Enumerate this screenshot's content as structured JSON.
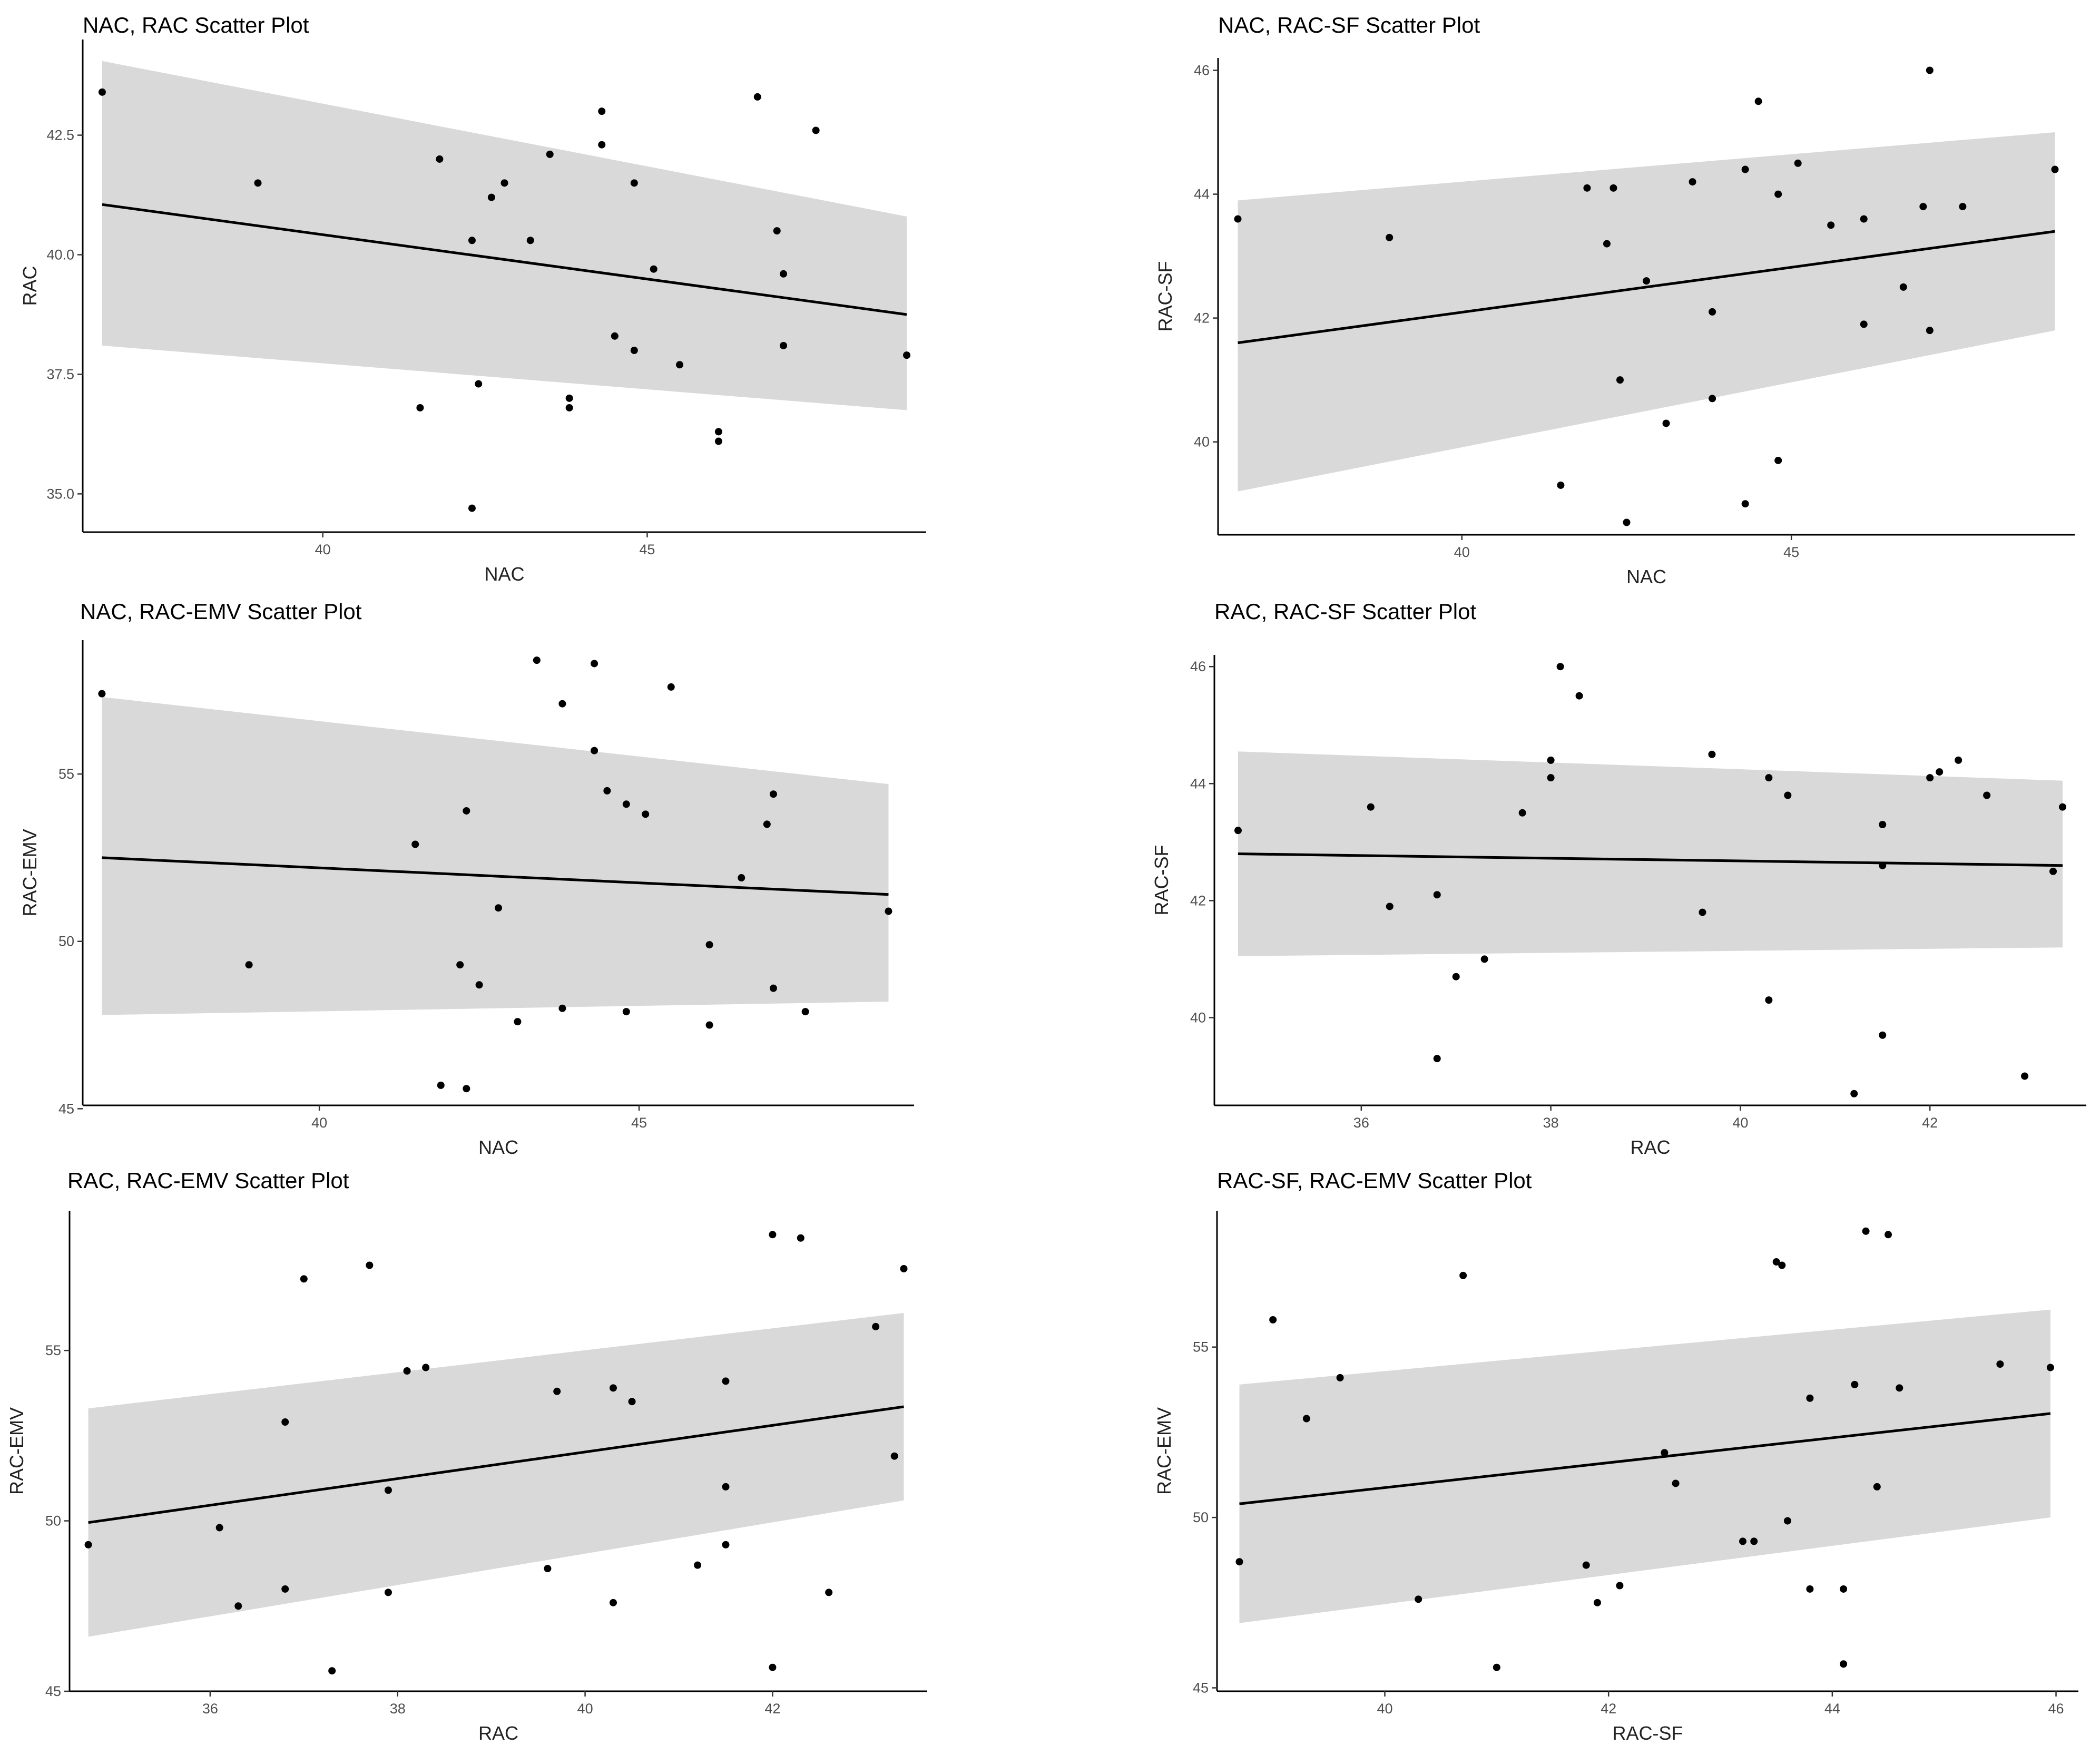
{
  "chart_data": [
    {
      "type": "scatter",
      "title": "NAC, RAC Scatter Plot",
      "xlabel": "NAC",
      "ylabel": "RAC",
      "xlim": [
        36.3,
        49.3
      ],
      "ylim": [
        34.2,
        44.5
      ],
      "xticks": [
        40,
        45
      ],
      "yticks": [
        35.0,
        37.5,
        40.0,
        42.5
      ],
      "ytick_labels": [
        "35.0",
        "37.5",
        "40.0",
        "42.5"
      ],
      "fit": {
        "x": [
          36.6,
          49.0
        ],
        "y": [
          41.05,
          38.75
        ],
        "lower": [
          38.1,
          36.75
        ],
        "upper": [
          44.05,
          40.8
        ]
      },
      "points": [
        {
          "x": 36.6,
          "y": 43.4
        },
        {
          "x": 39.0,
          "y": 41.5
        },
        {
          "x": 41.5,
          "y": 36.8
        },
        {
          "x": 41.8,
          "y": 42.0
        },
        {
          "x": 42.3,
          "y": 34.7
        },
        {
          "x": 42.3,
          "y": 40.3
        },
        {
          "x": 42.4,
          "y": 37.3
        },
        {
          "x": 42.6,
          "y": 41.2
        },
        {
          "x": 42.8,
          "y": 41.5
        },
        {
          "x": 43.2,
          "y": 40.3
        },
        {
          "x": 43.5,
          "y": 42.1
        },
        {
          "x": 43.8,
          "y": 37.0
        },
        {
          "x": 43.8,
          "y": 36.8
        },
        {
          "x": 44.3,
          "y": 42.3
        },
        {
          "x": 44.3,
          "y": 43.0
        },
        {
          "x": 44.5,
          "y": 38.3
        },
        {
          "x": 44.8,
          "y": 41.5
        },
        {
          "x": 44.8,
          "y": 38.0
        },
        {
          "x": 45.1,
          "y": 39.7
        },
        {
          "x": 45.5,
          "y": 37.7
        },
        {
          "x": 46.1,
          "y": 36.3
        },
        {
          "x": 46.1,
          "y": 36.1
        },
        {
          "x": 46.7,
          "y": 43.3
        },
        {
          "x": 47.0,
          "y": 40.5
        },
        {
          "x": 47.1,
          "y": 39.6
        },
        {
          "x": 47.1,
          "y": 38.1
        },
        {
          "x": 47.6,
          "y": 42.6
        },
        {
          "x": 49.0,
          "y": 37.9
        }
      ]
    },
    {
      "type": "scatter",
      "title": "NAC, RAC-SF Scatter Plot",
      "xlabel": "NAC",
      "ylabel": "RAC-SF",
      "xlim": [
        36.3,
        49.3
      ],
      "ylim": [
        38.5,
        46.2
      ],
      "xticks": [
        40,
        45
      ],
      "yticks": [
        40,
        42,
        44,
        46
      ],
      "ytick_labels": [
        "40",
        "42",
        "44",
        "46"
      ],
      "fit": {
        "x": [
          36.6,
          49.0
        ],
        "y": [
          41.6,
          43.4
        ],
        "lower": [
          39.2,
          41.8
        ],
        "upper": [
          43.9,
          45.0
        ]
      },
      "points": [
        {
          "x": 36.6,
          "y": 43.6
        },
        {
          "x": 38.9,
          "y": 43.3
        },
        {
          "x": 41.5,
          "y": 39.3
        },
        {
          "x": 41.9,
          "y": 44.1
        },
        {
          "x": 42.2,
          "y": 43.2
        },
        {
          "x": 42.3,
          "y": 44.1
        },
        {
          "x": 42.4,
          "y": 41.0
        },
        {
          "x": 42.5,
          "y": 38.7
        },
        {
          "x": 42.8,
          "y": 42.6
        },
        {
          "x": 43.1,
          "y": 40.3
        },
        {
          "x": 43.5,
          "y": 44.2
        },
        {
          "x": 43.8,
          "y": 42.1
        },
        {
          "x": 43.8,
          "y": 40.7
        },
        {
          "x": 44.3,
          "y": 44.4
        },
        {
          "x": 44.3,
          "y": 39.0
        },
        {
          "x": 44.5,
          "y": 45.5
        },
        {
          "x": 44.8,
          "y": 44.0
        },
        {
          "x": 44.8,
          "y": 39.7
        },
        {
          "x": 45.1,
          "y": 44.5
        },
        {
          "x": 45.6,
          "y": 43.5
        },
        {
          "x": 46.1,
          "y": 43.6
        },
        {
          "x": 46.1,
          "y": 41.9
        },
        {
          "x": 46.7,
          "y": 42.5
        },
        {
          "x": 47.0,
          "y": 43.8
        },
        {
          "x": 47.1,
          "y": 41.8
        },
        {
          "x": 47.1,
          "y": 46.0
        },
        {
          "x": 47.6,
          "y": 43.8
        },
        {
          "x": 49.0,
          "y": 44.4
        }
      ]
    },
    {
      "type": "scatter",
      "title": "NAC, RAC-EMV Scatter Plot",
      "xlabel": "NAC",
      "ylabel": "RAC-EMV",
      "xlim": [
        36.3,
        49.3
      ],
      "ylim": [
        45.1,
        59.0
      ],
      "xticks": [
        40,
        45
      ],
      "yticks": [
        45,
        50,
        55
      ],
      "ytick_labels": [
        "45",
        "50",
        "55"
      ],
      "fit": {
        "x": [
          36.6,
          48.9
        ],
        "y": [
          52.5,
          51.4
        ],
        "lower": [
          47.8,
          48.2
        ],
        "upper": [
          57.3,
          54.7
        ]
      },
      "points": [
        {
          "x": 36.6,
          "y": 57.4
        },
        {
          "x": 38.9,
          "y": 49.3
        },
        {
          "x": 41.5,
          "y": 52.9
        },
        {
          "x": 41.9,
          "y": 45.7
        },
        {
          "x": 42.2,
          "y": 49.3
        },
        {
          "x": 42.3,
          "y": 53.9
        },
        {
          "x": 42.3,
          "y": 45.6
        },
        {
          "x": 42.5,
          "y": 48.7
        },
        {
          "x": 42.8,
          "y": 51.0
        },
        {
          "x": 43.1,
          "y": 47.6
        },
        {
          "x": 43.4,
          "y": 58.4
        },
        {
          "x": 43.8,
          "y": 57.1
        },
        {
          "x": 43.8,
          "y": 48.0
        },
        {
          "x": 44.3,
          "y": 58.3
        },
        {
          "x": 44.3,
          "y": 55.7
        },
        {
          "x": 44.5,
          "y": 54.5
        },
        {
          "x": 44.8,
          "y": 54.1
        },
        {
          "x": 44.8,
          "y": 47.9
        },
        {
          "x": 45.1,
          "y": 53.8
        },
        {
          "x": 45.5,
          "y": 57.6
        },
        {
          "x": 46.1,
          "y": 49.9
        },
        {
          "x": 46.1,
          "y": 47.5
        },
        {
          "x": 46.6,
          "y": 51.9
        },
        {
          "x": 47.0,
          "y": 53.5
        },
        {
          "x": 47.1,
          "y": 54.4
        },
        {
          "x": 47.1,
          "y": 48.6
        },
        {
          "x": 47.6,
          "y": 47.9
        },
        {
          "x": 48.9,
          "y": 50.9
        }
      ]
    },
    {
      "type": "scatter",
      "title": "RAC, RAC-SF Scatter Plot",
      "xlabel": "RAC",
      "ylabel": "RAC-SF",
      "xlim": [
        34.45,
        43.65
      ],
      "ylim": [
        38.5,
        46.2
      ],
      "xticks": [
        36,
        38,
        40,
        42
      ],
      "yticks": [
        40,
        42,
        44,
        46
      ],
      "ytick_labels": [
        "40",
        "42",
        "44",
        "46"
      ],
      "fit": {
        "x": [
          34.7,
          43.4
        ],
        "y": [
          42.8,
          42.6
        ],
        "lower": [
          41.05,
          41.2
        ],
        "upper": [
          44.55,
          44.05
        ]
      },
      "points": [
        {
          "x": 34.7,
          "y": 43.2
        },
        {
          "x": 36.1,
          "y": 43.6
        },
        {
          "x": 36.3,
          "y": 41.9
        },
        {
          "x": 36.8,
          "y": 42.1
        },
        {
          "x": 36.8,
          "y": 39.3
        },
        {
          "x": 37.0,
          "y": 40.7
        },
        {
          "x": 37.3,
          "y": 41.0
        },
        {
          "x": 37.7,
          "y": 43.5
        },
        {
          "x": 38.0,
          "y": 44.4
        },
        {
          "x": 38.0,
          "y": 44.1
        },
        {
          "x": 38.1,
          "y": 46.0
        },
        {
          "x": 38.3,
          "y": 45.5
        },
        {
          "x": 39.6,
          "y": 41.8
        },
        {
          "x": 39.7,
          "y": 44.5
        },
        {
          "x": 40.3,
          "y": 44.1
        },
        {
          "x": 40.3,
          "y": 40.3
        },
        {
          "x": 40.5,
          "y": 43.8
        },
        {
          "x": 41.2,
          "y": 38.7
        },
        {
          "x": 41.5,
          "y": 43.3
        },
        {
          "x": 41.5,
          "y": 42.6
        },
        {
          "x": 41.5,
          "y": 39.7
        },
        {
          "x": 42.0,
          "y": 44.1
        },
        {
          "x": 42.1,
          "y": 44.2
        },
        {
          "x": 42.3,
          "y": 44.4
        },
        {
          "x": 42.6,
          "y": 43.8
        },
        {
          "x": 43.0,
          "y": 39.0
        },
        {
          "x": 43.3,
          "y": 42.5
        },
        {
          "x": 43.4,
          "y": 43.6
        }
      ]
    },
    {
      "type": "scatter",
      "title": "RAC, RAC-EMV Scatter Plot",
      "xlabel": "RAC",
      "ylabel": "RAC-EMV",
      "xlim": [
        34.5,
        43.65
      ],
      "ylim": [
        45.0,
        59.1
      ],
      "xticks": [
        36,
        38,
        40,
        42
      ],
      "yticks": [
        45,
        50,
        55
      ],
      "ytick_labels": [
        "45",
        "50",
        "55"
      ],
      "fit": {
        "x": [
          34.7,
          43.4
        ],
        "y": [
          49.95,
          53.35
        ],
        "lower": [
          46.6,
          50.6
        ],
        "upper": [
          53.3,
          56.1
        ]
      },
      "points": [
        {
          "x": 34.7,
          "y": 49.3
        },
        {
          "x": 36.1,
          "y": 49.8
        },
        {
          "x": 36.3,
          "y": 47.5
        },
        {
          "x": 36.8,
          "y": 52.9
        },
        {
          "x": 36.8,
          "y": 48.0
        },
        {
          "x": 37.0,
          "y": 57.1
        },
        {
          "x": 37.3,
          "y": 45.6
        },
        {
          "x": 37.7,
          "y": 57.5
        },
        {
          "x": 37.9,
          "y": 50.9
        },
        {
          "x": 37.9,
          "y": 47.9
        },
        {
          "x": 38.1,
          "y": 54.4
        },
        {
          "x": 38.3,
          "y": 54.5
        },
        {
          "x": 39.6,
          "y": 48.6
        },
        {
          "x": 39.7,
          "y": 53.8
        },
        {
          "x": 40.3,
          "y": 53.9
        },
        {
          "x": 40.3,
          "y": 47.6
        },
        {
          "x": 40.5,
          "y": 53.5
        },
        {
          "x": 41.2,
          "y": 48.7
        },
        {
          "x": 41.5,
          "y": 54.1
        },
        {
          "x": 41.5,
          "y": 51.0
        },
        {
          "x": 41.5,
          "y": 49.3
        },
        {
          "x": 42.0,
          "y": 45.7
        },
        {
          "x": 42.0,
          "y": 58.4
        },
        {
          "x": 42.3,
          "y": 58.3
        },
        {
          "x": 42.6,
          "y": 47.9
        },
        {
          "x": 43.1,
          "y": 55.7
        },
        {
          "x": 43.3,
          "y": 51.9
        },
        {
          "x": 43.4,
          "y": 57.4
        }
      ]
    },
    {
      "type": "scatter",
      "title": "RAC-SF, RAC-EMV Scatter Plot",
      "xlabel": "RAC-SF",
      "ylabel": "RAC-EMV",
      "xlim": [
        38.5,
        46.2
      ],
      "ylim": [
        44.9,
        59.0
      ],
      "xticks": [
        40,
        42,
        44,
        46
      ],
      "yticks": [
        45,
        50,
        55
      ],
      "ytick_labels": [
        "45",
        "50",
        "55"
      ],
      "fit": {
        "x": [
          38.7,
          45.95
        ],
        "y": [
          50.4,
          53.05
        ],
        "lower": [
          46.9,
          50.0
        ],
        "upper": [
          53.9,
          56.1
        ]
      },
      "points": [
        {
          "x": 38.7,
          "y": 48.7
        },
        {
          "x": 39.0,
          "y": 55.8
        },
        {
          "x": 39.3,
          "y": 52.9
        },
        {
          "x": 39.6,
          "y": 54.1
        },
        {
          "x": 40.3,
          "y": 47.6
        },
        {
          "x": 40.7,
          "y": 57.1
        },
        {
          "x": 41.0,
          "y": 45.6
        },
        {
          "x": 41.8,
          "y": 48.6
        },
        {
          "x": 41.9,
          "y": 47.5
        },
        {
          "x": 42.1,
          "y": 48.0
        },
        {
          "x": 42.5,
          "y": 51.9
        },
        {
          "x": 42.6,
          "y": 51.0
        },
        {
          "x": 43.2,
          "y": 49.3
        },
        {
          "x": 43.3,
          "y": 49.3
        },
        {
          "x": 43.5,
          "y": 57.5
        },
        {
          "x": 43.55,
          "y": 57.4
        },
        {
          "x": 43.6,
          "y": 49.9
        },
        {
          "x": 43.8,
          "y": 47.9
        },
        {
          "x": 43.8,
          "y": 53.5
        },
        {
          "x": 44.1,
          "y": 47.9
        },
        {
          "x": 44.1,
          "y": 45.7
        },
        {
          "x": 44.2,
          "y": 53.9
        },
        {
          "x": 44.3,
          "y": 58.4
        },
        {
          "x": 44.4,
          "y": 50.9
        },
        {
          "x": 44.5,
          "y": 58.3
        },
        {
          "x": 44.6,
          "y": 53.8
        },
        {
          "x": 45.5,
          "y": 54.5
        },
        {
          "x": 45.95,
          "y": 54.4
        }
      ]
    }
  ]
}
